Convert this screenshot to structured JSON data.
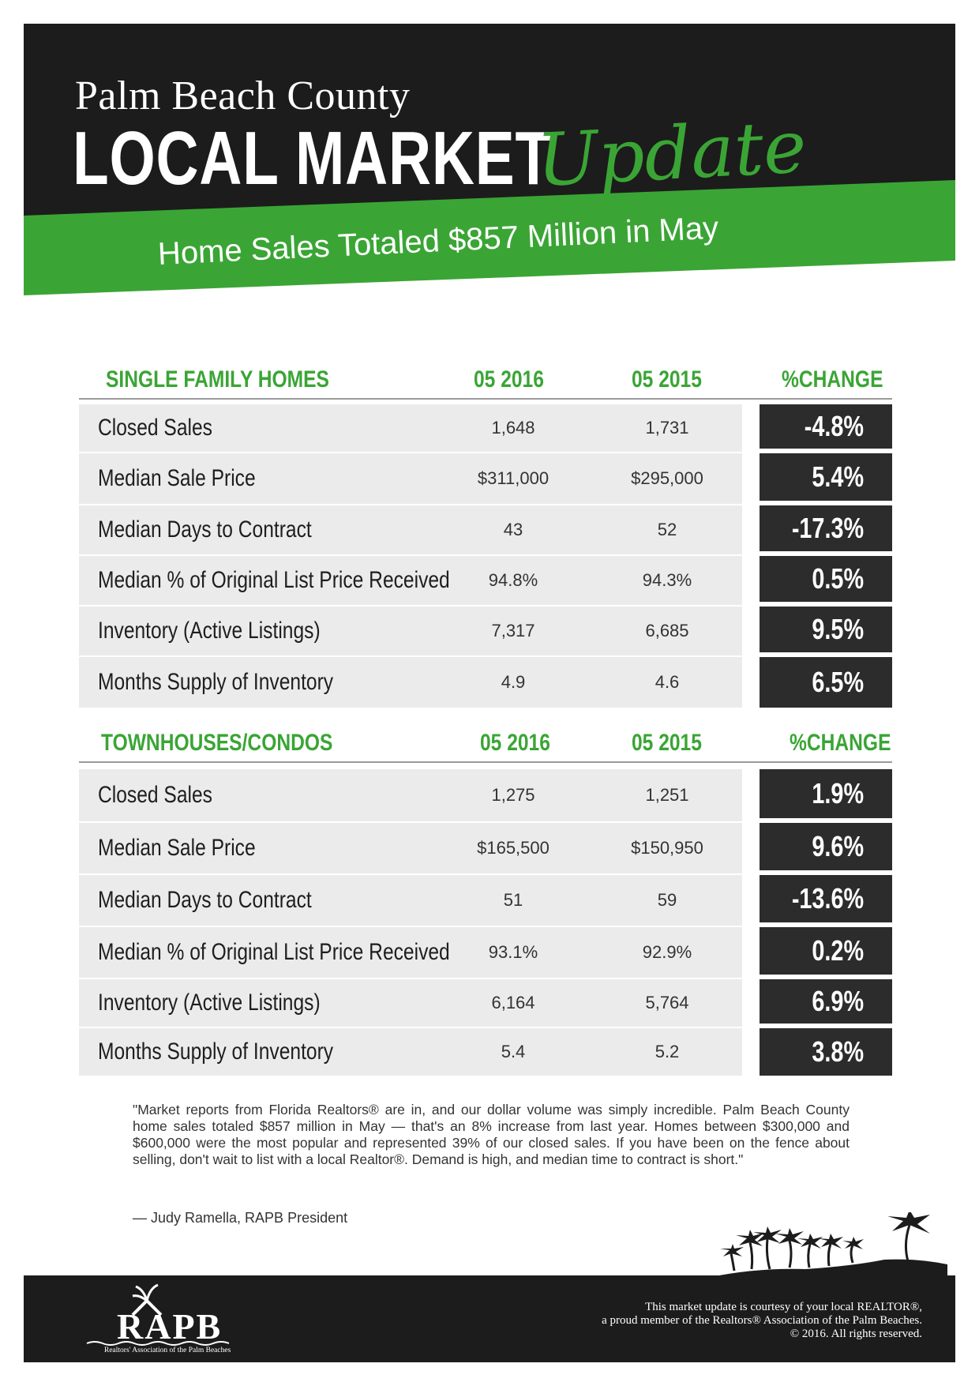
{
  "header": {
    "county": "Palm Beach County",
    "title_bold": "LOCAL MARKET",
    "title_script": "Update",
    "headline": "Home Sales Totaled $857 Million in May",
    "colors": {
      "black": "#1c1c1c",
      "green": "#3aa535"
    }
  },
  "single_family": {
    "heading": "SINGLE FAMILY HOMES",
    "col1": "05 2016",
    "col2": "05 2015",
    "col3": "%CHANGE",
    "rows": [
      {
        "label": "Closed Sales",
        "v2016": "1,648",
        "v2015": "1,731",
        "change": "-4.8%"
      },
      {
        "label": "Median Sale Price",
        "v2016": "$311,000",
        "v2015": "$295,000",
        "change": "5.4%"
      },
      {
        "label": "Median Days to Contract",
        "v2016": "43",
        "v2015": "52",
        "change": "-17.3%"
      },
      {
        "label": "Median % of Original List Price Received",
        "v2016": "94.8%",
        "v2015": "94.3%",
        "change": "0.5%"
      },
      {
        "label": "Inventory (Active  Listings)",
        "v2016": "7,317",
        "v2015": "6,685",
        "change": "9.5%"
      },
      {
        "label": "Months Supply of Inventory",
        "v2016": "4.9",
        "v2015": "4.6",
        "change": "6.5%"
      }
    ]
  },
  "townhouses": {
    "heading": "TOWNHOUSES/CONDOS",
    "col1": "05 2016",
    "col2": "05 2015",
    "col3": "%CHANGE",
    "rows": [
      {
        "label": "Closed Sales",
        "v2016": "1,275",
        "v2015": "1,251",
        "change": "1.9%"
      },
      {
        "label": "Median Sale Price",
        "v2016": "$165,500",
        "v2015": "$150,950",
        "change": "9.6%"
      },
      {
        "label": "Median Days to Contract",
        "v2016": "51",
        "v2015": "59",
        "change": "-13.6%"
      },
      {
        "label": "Median % of Original List Price Received",
        "v2016": "93.1%",
        "v2015": "92.9%",
        "change": "0.2%"
      },
      {
        "label": "Inventory (Active Listings)",
        "v2016": "6,164",
        "v2015": "5,764",
        "change": "6.9%"
      },
      {
        "label": "Months Supply of Inventory",
        "v2016": "5.4",
        "v2015": "5.2",
        "change": "3.8%"
      }
    ]
  },
  "quote": {
    "text": "\"Market reports from Florida Realtors® are in, and our dollar volume was simply incredible. Palm Beach County home sales totaled $857 million in May — that's an 8% increase from last year. Homes between $300,000 and $600,000 were the most popular and represented 39% of our closed sales. If you have been on the fence about selling, don't wait to list with a local Realtor®. Demand is high, and median time to contract is short.\"",
    "author": "— Judy Ramella, RAPB President"
  },
  "footer": {
    "logo_text": "RAPB",
    "logo_sub": "Realtors' Association of the Palm Beaches",
    "courtesy_line1": "This market update is courtesy of your local REALTOR®,",
    "courtesy_line2": "a proud member of the Realtors® Association of the Palm Beaches.",
    "courtesy_line3": "© 2016. All rights reserved."
  }
}
